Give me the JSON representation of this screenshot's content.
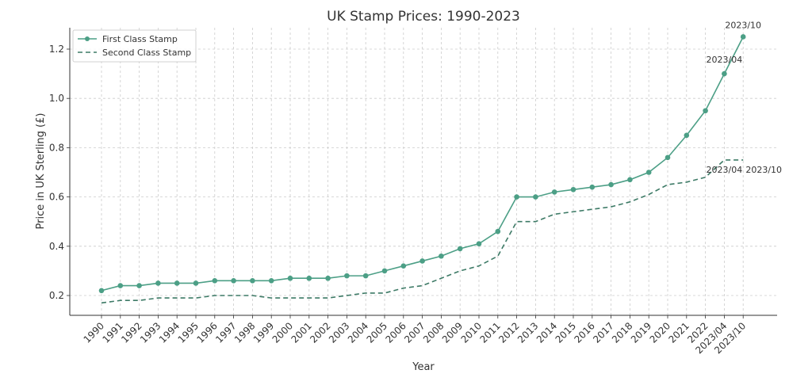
{
  "chart_data": {
    "type": "line",
    "title": "UK Stamp Prices: 1990-2023",
    "xlabel": "Year",
    "ylabel": "Price in UK Sterling (£)",
    "categories": [
      "1990",
      "1991",
      "1992",
      "1993",
      "1994",
      "1995",
      "1996",
      "1997",
      "1998",
      "1999",
      "2000",
      "2001",
      "2002",
      "2003",
      "2004",
      "2005",
      "2006",
      "2007",
      "2008",
      "2009",
      "2010",
      "2011",
      "2012",
      "2013",
      "2014",
      "2015",
      "2016",
      "2017",
      "2018",
      "2019",
      "2020",
      "2021",
      "2022",
      "2023/04",
      "2023/10"
    ],
    "series": [
      {
        "name": "First Class Stamp",
        "color": "#4c9f86",
        "style": "solid-marker",
        "values": [
          0.22,
          0.24,
          0.24,
          0.25,
          0.25,
          0.25,
          0.26,
          0.26,
          0.26,
          0.26,
          0.27,
          0.27,
          0.27,
          0.28,
          0.28,
          0.3,
          0.32,
          0.34,
          0.36,
          0.39,
          0.41,
          0.46,
          0.6,
          0.6,
          0.62,
          0.63,
          0.64,
          0.65,
          0.67,
          0.7,
          0.76,
          0.85,
          0.95,
          1.1,
          1.25
        ]
      },
      {
        "name": "Second Class Stamp",
        "color": "#3d7a66",
        "style": "dashed",
        "values": [
          0.17,
          0.18,
          0.18,
          0.19,
          0.19,
          0.19,
          0.2,
          0.2,
          0.2,
          0.19,
          0.19,
          0.19,
          0.19,
          0.2,
          0.21,
          0.21,
          0.23,
          0.24,
          0.27,
          0.3,
          0.32,
          0.36,
          0.5,
          0.5,
          0.53,
          0.54,
          0.55,
          0.56,
          0.58,
          0.61,
          0.65,
          0.66,
          0.68,
          0.75,
          0.75
        ]
      }
    ],
    "yticks": [
      0.2,
      0.4,
      0.6,
      0.8,
      1.0,
      1.2
    ],
    "ytick_labels": [
      "0.2",
      "0.4",
      "0.6",
      "0.8",
      "1.0",
      "1.2"
    ],
    "ylim": [
      0.125,
      1.295
    ],
    "grid": true,
    "legend": "top-left",
    "annotations": [
      {
        "text": "2023/04",
        "series": 0,
        "index": 33
      },
      {
        "text": "2023/10",
        "series": 0,
        "index": 34
      },
      {
        "text": "2023/04",
        "series": 1,
        "index": 33
      },
      {
        "text": "2023/10",
        "series": 1,
        "index": 34
      }
    ]
  }
}
